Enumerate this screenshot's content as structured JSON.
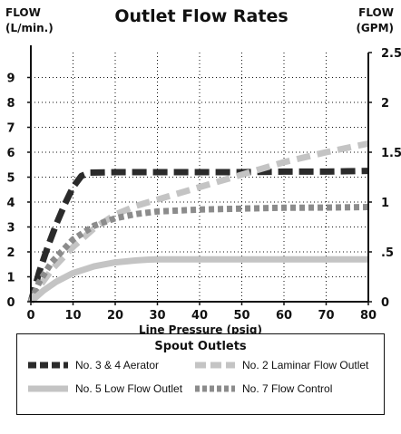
{
  "header": {
    "title": "Outlet Flow Rates",
    "left_unit_line1": "FLOW",
    "left_unit_line2": "(L/min.)",
    "right_unit_line1": "FLOW",
    "right_unit_line2": "(GPM)"
  },
  "chart_data": {
    "type": "line",
    "title": "Outlet Flow Rates",
    "xlabel": "Line Pressure (psig)",
    "ylabel": "FLOW (L/min.)",
    "y2label": "FLOW (GPM)",
    "xlim": [
      0,
      80
    ],
    "ylim": [
      0,
      10
    ],
    "y2lim": [
      0,
      2.5
    ],
    "x_ticks": [
      0,
      10,
      20,
      30,
      40,
      50,
      60,
      70,
      80
    ],
    "y_ticks": [
      0,
      1,
      2,
      3,
      4,
      5,
      6,
      7,
      8,
      9
    ],
    "y2_ticks": [
      {
        "value": 0,
        "label": "0"
      },
      {
        "value": 0.5,
        "label": ".5"
      },
      {
        "value": 1,
        "label": "1"
      },
      {
        "value": 1.5,
        "label": "1.5"
      },
      {
        "value": 2,
        "label": "2"
      },
      {
        "value": 2.5,
        "label": "2.5"
      }
    ],
    "grid": true,
    "legend_title": "Spout Outlets",
    "legend_position": "bottom",
    "series": [
      {
        "name": "No. 3 & 4 Aerator",
        "style": "dark-dashed",
        "color": "#2b2b2b",
        "x": [
          0,
          2,
          4,
          6,
          8,
          10,
          12,
          14,
          20,
          30,
          40,
          50,
          60,
          70,
          80
        ],
        "y": [
          0,
          1.2,
          2.2,
          3.1,
          3.9,
          4.6,
          5.05,
          5.18,
          5.2,
          5.2,
          5.2,
          5.2,
          5.22,
          5.22,
          5.25
        ]
      },
      {
        "name": "No. 2 Laminar Flow Outlet",
        "style": "light-dashed",
        "color": "#c4c4c4",
        "x": [
          0,
          2,
          5,
          10,
          15,
          20,
          25,
          30,
          40,
          50,
          60,
          70,
          80
        ],
        "y": [
          0,
          0.6,
          1.3,
          2.2,
          2.95,
          3.5,
          3.85,
          4.1,
          4.6,
          5.1,
          5.6,
          6.0,
          6.35
        ]
      },
      {
        "name": "No. 7 Flow Control",
        "style": "gray-dotted",
        "color": "#8c8c8c",
        "x": [
          0,
          2,
          5,
          10,
          15,
          20,
          25,
          30,
          40,
          50,
          60,
          70,
          80
        ],
        "y": [
          0,
          0.8,
          1.6,
          2.5,
          3.05,
          3.35,
          3.52,
          3.62,
          3.7,
          3.74,
          3.77,
          3.78,
          3.8
        ]
      },
      {
        "name": "No. 5 Low Flow Outlet",
        "style": "light-solid",
        "color": "#c4c4c4",
        "x": [
          0,
          3,
          6,
          10,
          15,
          20,
          25,
          28,
          30,
          40,
          50,
          60,
          70,
          80
        ],
        "y": [
          0,
          0.45,
          0.8,
          1.15,
          1.42,
          1.58,
          1.66,
          1.69,
          1.7,
          1.7,
          1.7,
          1.7,
          1.7,
          1.7
        ]
      }
    ]
  },
  "legend": {
    "title": "Spout Outlets",
    "items": [
      {
        "label": "No. 3 & 4 Aerator"
      },
      {
        "label": "No. 2 Laminar Flow Outlet"
      },
      {
        "label": "No. 5 Low Flow Outlet"
      },
      {
        "label": "No. 7 Flow Control"
      }
    ]
  }
}
